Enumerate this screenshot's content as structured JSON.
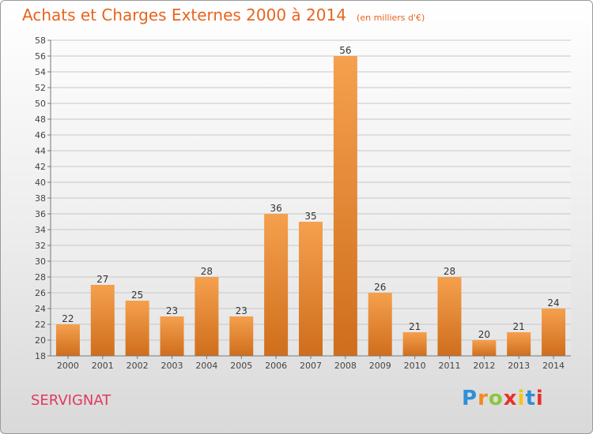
{
  "chart_data": {
    "type": "bar",
    "title": "Achats et Charges Externes 2000 à 2014",
    "subtitle": "(en milliers d'€)",
    "categories": [
      "2000",
      "2001",
      "2002",
      "2003",
      "2004",
      "2005",
      "2006",
      "2007",
      "2008",
      "2009",
      "2010",
      "2011",
      "2012",
      "2013",
      "2014"
    ],
    "values": [
      22,
      27,
      25,
      23,
      28,
      23,
      36,
      35,
      56,
      26,
      21,
      28,
      20,
      21,
      24
    ],
    "ylim": [
      18,
      58
    ],
    "yticks": [
      18,
      20,
      22,
      24,
      26,
      28,
      30,
      32,
      34,
      36,
      38,
      40,
      42,
      44,
      46,
      48,
      50,
      52,
      54,
      56,
      58
    ],
    "grid": true,
    "bar_color": "#f5a04e",
    "bar_color_dark": "#cf6e1c"
  },
  "place_name": "SERVIGNAT",
  "logo": {
    "letters": [
      "P",
      "r",
      "o",
      "x",
      "i",
      "t",
      "i"
    ],
    "colors": [
      "#2e8fd8",
      "#f08a1c",
      "#8cc63f",
      "#e8302a",
      "#f5c21b",
      "#2e8fd8",
      "#e8302a"
    ]
  }
}
